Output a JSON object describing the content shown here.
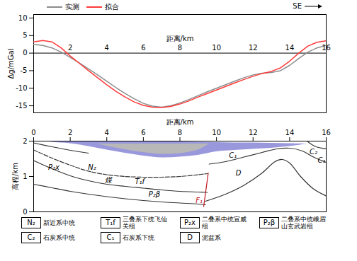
{
  "chart_data": [
    {
      "type": "line",
      "x_label": "距离/km",
      "y_label": "Δg/mGal",
      "legend": "top-left",
      "annotations": [
        {
          "text": "SE"
        }
      ],
      "xlim": [
        0,
        16
      ],
      "xticks": [
        2,
        4,
        6,
        8,
        10,
        12,
        14,
        16
      ],
      "ylim": [
        -17,
        11
      ],
      "yticks": [
        10,
        5,
        0,
        -5,
        -10,
        -15
      ],
      "x": [
        0,
        0.5,
        1,
        1.5,
        2,
        2.5,
        3,
        3.5,
        4,
        4.5,
        5,
        5.5,
        6,
        6.5,
        7,
        7.5,
        8,
        8.5,
        9,
        9.5,
        10,
        10.5,
        11,
        11.5,
        12,
        12.5,
        13,
        13.5,
        14,
        14.5,
        15,
        15.5,
        16
      ],
      "series": [
        {
          "name": "实测",
          "color": "#8c8c8c",
          "values": [
            2.5,
            2.2,
            1.5,
            0.3,
            -1.2,
            -2.8,
            -4.5,
            -6.2,
            -8,
            -9.8,
            -11.5,
            -13,
            -14.3,
            -15.1,
            -15.4,
            -15,
            -14.2,
            -13.2,
            -12.1,
            -11,
            -10,
            -9,
            -8,
            -7,
            -6.2,
            -5.7,
            -5.5,
            -5,
            -3.5,
            -1.5,
            0.3,
            1.5,
            2.2
          ]
        },
        {
          "name": "拟合",
          "color": "#ff3a3a",
          "values": [
            3.2,
            3.6,
            3.2,
            1.5,
            -0.8,
            -2.9,
            -5,
            -7,
            -9,
            -10.9,
            -12.5,
            -13.9,
            -14.9,
            -15.4,
            -15.5,
            -15.2,
            -14.5,
            -13.6,
            -12.5,
            -11.5,
            -10.5,
            -9.5,
            -8.5,
            -7.5,
            -6.6,
            -5.8,
            -5.2,
            -4.2,
            -2.3,
            0,
            2,
            3.1,
            3.5
          ]
        }
      ]
    },
    {
      "type": "area",
      "x_label": "距离/km",
      "y_label": "高程/km",
      "xlim": [
        0,
        16
      ],
      "xticks": [
        0,
        2,
        4,
        6,
        8,
        10,
        12,
        14,
        16
      ],
      "ylim": [
        0,
        2
      ],
      "yticks": [
        0,
        1,
        2
      ],
      "layers": [
        {
          "color": "#9a98dc",
          "x": [
            0.5,
            1,
            2,
            3,
            4,
            5,
            6,
            7,
            8,
            9,
            10,
            11,
            12,
            13,
            14,
            15
          ],
          "top": [
            2,
            2,
            2,
            2,
            2,
            2,
            2,
            2,
            1.98,
            1.97,
            1.96,
            1.95,
            1.95,
            1.94,
            1.93,
            1.92
          ],
          "bottom": [
            2,
            1.97,
            1.93,
            1.85,
            1.75,
            1.66,
            1.58,
            1.53,
            1.55,
            1.6,
            1.7,
            1.74,
            1.77,
            1.8,
            1.85,
            1.92
          ]
        },
        {
          "color": "#b8b8b8",
          "x": [
            3.5,
            4,
            5,
            6,
            7,
            8,
            9,
            9.6
          ],
          "top": [
            1.92,
            1.92,
            1.92,
            1.92,
            1.92,
            1.92,
            1.92,
            1.92
          ],
          "bottom": [
            1.92,
            1.86,
            1.76,
            1.68,
            1.63,
            1.65,
            1.75,
            1.92
          ]
        }
      ],
      "lines": [
        {
          "color": "#333333",
          "line_style": "solid",
          "points": [
            [
              0,
              1.95
            ],
            [
              1,
              1.84
            ],
            [
              2,
              1.74
            ],
            [
              3,
              1.66
            ]
          ]
        },
        {
          "color": "#333333",
          "line_style": "dashed",
          "points": [
            [
              0,
              1.75
            ],
            [
              1,
              1.52
            ],
            [
              2,
              1.32
            ],
            [
              3,
              1.15
            ],
            [
              4,
              1.05
            ],
            [
              5,
              1.0
            ],
            [
              6,
              0.98
            ],
            [
              7,
              0.98
            ],
            [
              8,
              1.0
            ],
            [
              9,
              1.05
            ],
            [
              9.5,
              1.08
            ]
          ]
        },
        {
          "color": "#333333",
          "line_style": "solid",
          "points": [
            [
              0,
              1.45
            ],
            [
              1,
              1.22
            ],
            [
              2,
              1.02
            ],
            [
              3,
              0.88
            ],
            [
              4,
              0.78
            ],
            [
              5,
              0.72
            ],
            [
              6,
              0.67
            ],
            [
              7,
              0.62
            ],
            [
              8,
              0.58
            ],
            [
              9,
              0.56
            ],
            [
              9.5,
              0.55
            ]
          ]
        },
        {
          "color": "#333333",
          "line_style": "solid",
          "points": [
            [
              0,
              0.78
            ],
            [
              1,
              0.68
            ],
            [
              2,
              0.58
            ],
            [
              3,
              0.5
            ],
            [
              4,
              0.43
            ],
            [
              5,
              0.37
            ],
            [
              6,
              0.32
            ],
            [
              7,
              0.28
            ],
            [
              8,
              0.25
            ],
            [
              9,
              0.22
            ],
            [
              9.4,
              0.2
            ]
          ]
        },
        {
          "color": "#333333",
          "line_style": "solid",
          "points": [
            [
              9.6,
              1.35
            ],
            [
              10.5,
              1.42
            ],
            [
              11.5,
              1.55
            ],
            [
              12.5,
              1.68
            ],
            [
              13.3,
              1.78
            ],
            [
              14,
              1.8
            ],
            [
              14.7,
              1.72
            ],
            [
              15.3,
              1.55
            ],
            [
              16,
              1.4
            ]
          ]
        },
        {
          "color": "#333333",
          "line_style": "solid",
          "points": [
            [
              9.4,
              0.3
            ],
            [
              10.5,
              0.5
            ],
            [
              11.5,
              0.75
            ],
            [
              12.5,
              1.1
            ],
            [
              13.2,
              1.42
            ],
            [
              13.6,
              1.48
            ],
            [
              14,
              1.38
            ],
            [
              14.6,
              1.0
            ],
            [
              15.3,
              0.65
            ],
            [
              16,
              0.45
            ]
          ]
        },
        {
          "color": "#333333",
          "line_style": "solid",
          "points": [
            [
              15,
              1.98
            ],
            [
              15.4,
              1.85
            ],
            [
              16,
              1.78
            ]
          ]
        },
        {
          "color": "#c0141c",
          "line_style": "solid",
          "points": [
            [
              9.55,
              1.1
            ],
            [
              9.3,
              0.15
            ]
          ]
        }
      ],
      "annotations": [
        {
          "text": "P₂x",
          "x": 1.1,
          "y": 1.25,
          "color": "#000000"
        },
        {
          "text": "N₂",
          "x": 3.2,
          "y": 1.25,
          "color": "#000000"
        },
        {
          "text": "煤",
          "x": 4.1,
          "y": 0.9,
          "color": "#000000"
        },
        {
          "text": "T₁f",
          "x": 5.8,
          "y": 0.85,
          "color": "#000000"
        },
        {
          "text": "P₂β",
          "x": 6.6,
          "y": 0.5,
          "color": "#000000"
        },
        {
          "text": "F₁",
          "x": 9.05,
          "y": 0.32,
          "color": "#c0141c"
        },
        {
          "text": "C₁",
          "x": 10.9,
          "y": 1.6,
          "color": "#000000"
        },
        {
          "text": "D",
          "x": 11.2,
          "y": 1.1,
          "color": "#000000"
        },
        {
          "text": "C₂",
          "x": 15.3,
          "y": 1.7,
          "color": "#000000"
        },
        {
          "text": "C₁",
          "x": 15.75,
          "y": 1.45,
          "color": "#000000"
        }
      ],
      "legend_items": [
        {
          "symbol": "N₂",
          "text": "新近系中统"
        },
        {
          "symbol": "T₁f",
          "text": "三叠系下统飞仙关组"
        },
        {
          "symbol": "P₂x",
          "text": "二叠系中统宣威组"
        },
        {
          "symbol": "P₂β",
          "text": "二叠系中统峨眉山玄武岩组"
        },
        {
          "symbol": "C₂",
          "text": "石炭系中统"
        },
        {
          "symbol": "C₁",
          "text": "石炭系下统"
        },
        {
          "symbol": "D",
          "text": "泥盆系"
        }
      ]
    }
  ]
}
